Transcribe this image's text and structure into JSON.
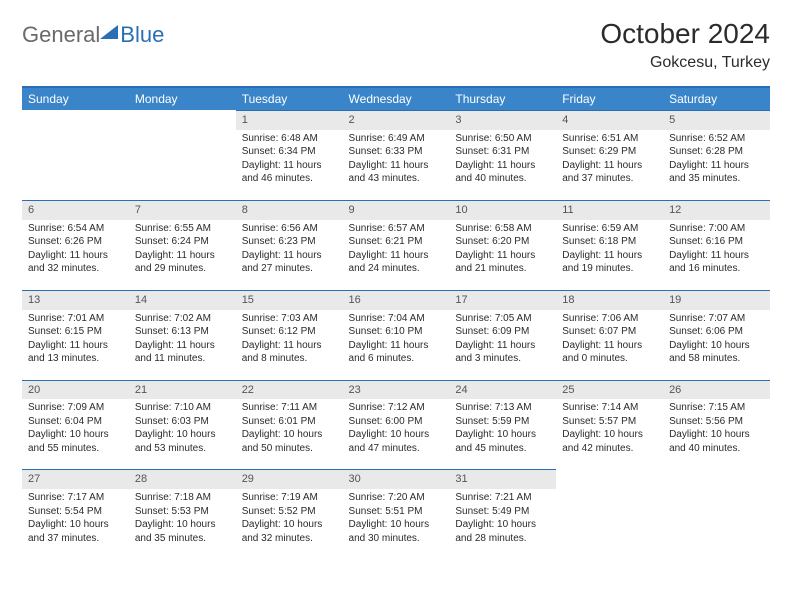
{
  "colors": {
    "header_bg": "#3a85c9",
    "header_border": "#2a6fb5",
    "daynum_bg": "#e9e9e9",
    "text": "#2b2b2b",
    "logo_gray": "#6a6a6a",
    "logo_blue": "#2a6fb5"
  },
  "logo": {
    "part1": "General",
    "part2": "Blue"
  },
  "title": "October 2024",
  "location": "Gokcesu, Turkey",
  "weekdays": [
    "Sunday",
    "Monday",
    "Tuesday",
    "Wednesday",
    "Thursday",
    "Friday",
    "Saturday"
  ],
  "weeks": [
    [
      null,
      null,
      {
        "d": "1",
        "sr": "6:48 AM",
        "ss": "6:34 PM",
        "dl": "11 hours and 46 minutes."
      },
      {
        "d": "2",
        "sr": "6:49 AM",
        "ss": "6:33 PM",
        "dl": "11 hours and 43 minutes."
      },
      {
        "d": "3",
        "sr": "6:50 AM",
        "ss": "6:31 PM",
        "dl": "11 hours and 40 minutes."
      },
      {
        "d": "4",
        "sr": "6:51 AM",
        "ss": "6:29 PM",
        "dl": "11 hours and 37 minutes."
      },
      {
        "d": "5",
        "sr": "6:52 AM",
        "ss": "6:28 PM",
        "dl": "11 hours and 35 minutes."
      }
    ],
    [
      {
        "d": "6",
        "sr": "6:54 AM",
        "ss": "6:26 PM",
        "dl": "11 hours and 32 minutes."
      },
      {
        "d": "7",
        "sr": "6:55 AM",
        "ss": "6:24 PM",
        "dl": "11 hours and 29 minutes."
      },
      {
        "d": "8",
        "sr": "6:56 AM",
        "ss": "6:23 PM",
        "dl": "11 hours and 27 minutes."
      },
      {
        "d": "9",
        "sr": "6:57 AM",
        "ss": "6:21 PM",
        "dl": "11 hours and 24 minutes."
      },
      {
        "d": "10",
        "sr": "6:58 AM",
        "ss": "6:20 PM",
        "dl": "11 hours and 21 minutes."
      },
      {
        "d": "11",
        "sr": "6:59 AM",
        "ss": "6:18 PM",
        "dl": "11 hours and 19 minutes."
      },
      {
        "d": "12",
        "sr": "7:00 AM",
        "ss": "6:16 PM",
        "dl": "11 hours and 16 minutes."
      }
    ],
    [
      {
        "d": "13",
        "sr": "7:01 AM",
        "ss": "6:15 PM",
        "dl": "11 hours and 13 minutes."
      },
      {
        "d": "14",
        "sr": "7:02 AM",
        "ss": "6:13 PM",
        "dl": "11 hours and 11 minutes."
      },
      {
        "d": "15",
        "sr": "7:03 AM",
        "ss": "6:12 PM",
        "dl": "11 hours and 8 minutes."
      },
      {
        "d": "16",
        "sr": "7:04 AM",
        "ss": "6:10 PM",
        "dl": "11 hours and 6 minutes."
      },
      {
        "d": "17",
        "sr": "7:05 AM",
        "ss": "6:09 PM",
        "dl": "11 hours and 3 minutes."
      },
      {
        "d": "18",
        "sr": "7:06 AM",
        "ss": "6:07 PM",
        "dl": "11 hours and 0 minutes."
      },
      {
        "d": "19",
        "sr": "7:07 AM",
        "ss": "6:06 PM",
        "dl": "10 hours and 58 minutes."
      }
    ],
    [
      {
        "d": "20",
        "sr": "7:09 AM",
        "ss": "6:04 PM",
        "dl": "10 hours and 55 minutes."
      },
      {
        "d": "21",
        "sr": "7:10 AM",
        "ss": "6:03 PM",
        "dl": "10 hours and 53 minutes."
      },
      {
        "d": "22",
        "sr": "7:11 AM",
        "ss": "6:01 PM",
        "dl": "10 hours and 50 minutes."
      },
      {
        "d": "23",
        "sr": "7:12 AM",
        "ss": "6:00 PM",
        "dl": "10 hours and 47 minutes."
      },
      {
        "d": "24",
        "sr": "7:13 AM",
        "ss": "5:59 PM",
        "dl": "10 hours and 45 minutes."
      },
      {
        "d": "25",
        "sr": "7:14 AM",
        "ss": "5:57 PM",
        "dl": "10 hours and 42 minutes."
      },
      {
        "d": "26",
        "sr": "7:15 AM",
        "ss": "5:56 PM",
        "dl": "10 hours and 40 minutes."
      }
    ],
    [
      {
        "d": "27",
        "sr": "7:17 AM",
        "ss": "5:54 PM",
        "dl": "10 hours and 37 minutes."
      },
      {
        "d": "28",
        "sr": "7:18 AM",
        "ss": "5:53 PM",
        "dl": "10 hours and 35 minutes."
      },
      {
        "d": "29",
        "sr": "7:19 AM",
        "ss": "5:52 PM",
        "dl": "10 hours and 32 minutes."
      },
      {
        "d": "30",
        "sr": "7:20 AM",
        "ss": "5:51 PM",
        "dl": "10 hours and 30 minutes."
      },
      {
        "d": "31",
        "sr": "7:21 AM",
        "ss": "5:49 PM",
        "dl": "10 hours and 28 minutes."
      },
      null,
      null
    ]
  ],
  "labels": {
    "sunrise": "Sunrise: ",
    "sunset": "Sunset: ",
    "daylight": "Daylight: "
  }
}
